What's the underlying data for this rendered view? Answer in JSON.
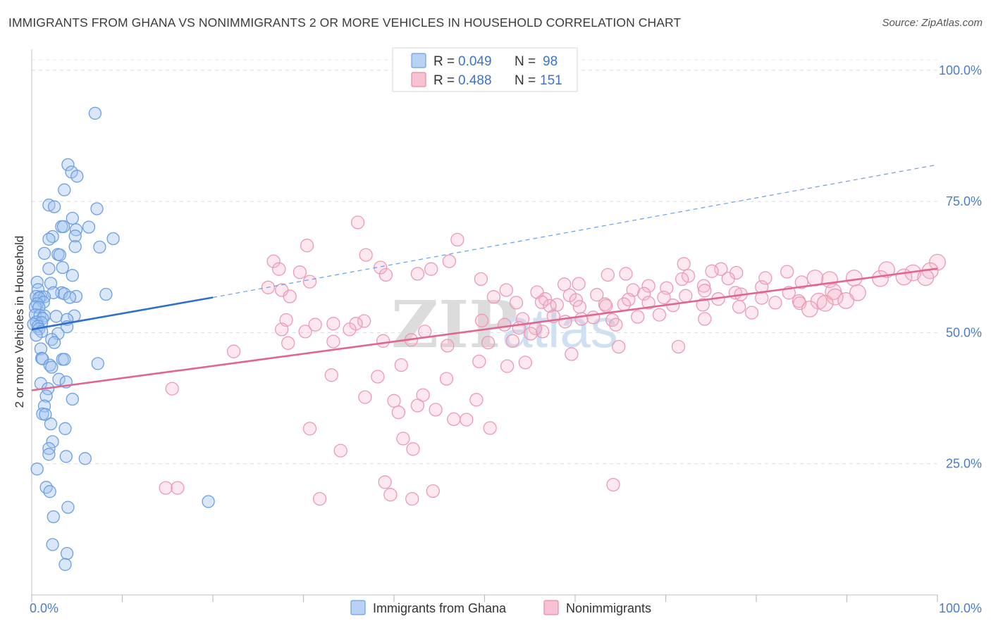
{
  "header": {
    "title": "IMMIGRANTS FROM GHANA VS NONIMMIGRANTS 2 OR MORE VEHICLES IN HOUSEHOLD CORRELATION CHART",
    "source": "Source: ZipAtlas.com"
  },
  "watermark": {
    "zip": "ZIP",
    "atlas": "atlas"
  },
  "legend": {
    "r_label": "R =",
    "n_label": "N =",
    "series": [
      {
        "name": "Immigrants from Ghana",
        "r": "0.049",
        "n": "98",
        "color": "#6fa0e0",
        "fill": "#b9d1f3"
      },
      {
        "name": "Nonimmigrants",
        "r": "0.488",
        "n": "151",
        "color": "#e88aa8",
        "fill": "#f7c3d3"
      }
    ]
  },
  "chart_data": {
    "type": "scatter",
    "title": "IMMIGRANTS FROM GHANA VS NONIMMIGRANTS 2 OR MORE VEHICLES IN HOUSEHOLD CORRELATION CHART",
    "xlabel": "",
    "ylabel": "2 or more Vehicles in Household",
    "xlim": [
      0,
      100
    ],
    "ylim": [
      0,
      104
    ],
    "x_tick_labels": [
      "0.0%",
      "100.0%"
    ],
    "y_ticks": [
      {
        "value": 25,
        "label": "25.0%"
      },
      {
        "value": 50,
        "label": "50.0%"
      },
      {
        "value": 75,
        "label": "75.0%"
      },
      {
        "value": 100,
        "label": "100.0%"
      }
    ],
    "grid": "horizontal dashed",
    "legend_position": "top-center",
    "series": [
      {
        "name": "Immigrants from Ghana",
        "color": "#3b7dd8",
        "trend": {
          "x0": 0,
          "y0": 50.6,
          "x_solid_end": 20,
          "y_solid_end": 56.7,
          "x1": 100,
          "y1": 82.0
        },
        "points": [
          [
            7.0,
            91.8
          ],
          [
            4.0,
            82.0
          ],
          [
            4.4,
            80.6
          ],
          [
            5.0,
            79.8
          ],
          [
            3.6,
            77.2
          ],
          [
            1.9,
            74.3
          ],
          [
            2.5,
            74.0
          ],
          [
            7.2,
            73.6
          ],
          [
            4.5,
            71.8
          ],
          [
            3.3,
            70.2
          ],
          [
            3.5,
            70.2
          ],
          [
            6.3,
            70.1
          ],
          [
            4.9,
            69.6
          ],
          [
            4.8,
            68.4
          ],
          [
            2.3,
            68.3
          ],
          [
            1.9,
            67.8
          ],
          [
            9.0,
            67.9
          ],
          [
            7.5,
            66.3
          ],
          [
            4.8,
            66.4
          ],
          [
            1.4,
            65.1
          ],
          [
            2.9,
            64.9
          ],
          [
            3.1,
            64.8
          ],
          [
            1.9,
            62.2
          ],
          [
            3.4,
            62.4
          ],
          [
            4.5,
            60.9
          ],
          [
            2.1,
            59.4
          ],
          [
            0.6,
            59.6
          ],
          [
            0.7,
            58.2
          ],
          [
            3.3,
            57.6
          ],
          [
            2.4,
            57.6
          ],
          [
            3.6,
            57.4
          ],
          [
            8.2,
            57.3
          ],
          [
            0.5,
            56.9
          ],
          [
            1.0,
            56.8
          ],
          [
            1.4,
            56.8
          ],
          [
            0.8,
            56.6
          ],
          [
            4.9,
            56.9
          ],
          [
            4.2,
            56.7
          ],
          [
            1.3,
            55.8
          ],
          [
            0.6,
            55.5
          ],
          [
            0.4,
            54.9
          ],
          [
            0.8,
            54.8
          ],
          [
            0.4,
            53.4
          ],
          [
            0.9,
            53.3
          ],
          [
            1.4,
            53.2
          ],
          [
            2.7,
            53.1
          ],
          [
            1.2,
            52.7
          ],
          [
            4.7,
            53.2
          ],
          [
            3.9,
            52.5
          ],
          [
            0.5,
            52.0
          ],
          [
            1.1,
            51.9
          ],
          [
            0.2,
            51.6
          ],
          [
            0.7,
            51.2
          ],
          [
            3.9,
            51.1
          ],
          [
            0.8,
            50.7
          ],
          [
            1.1,
            50.2
          ],
          [
            0.5,
            49.5
          ],
          [
            2.9,
            49.8
          ],
          [
            2.2,
            48.7
          ],
          [
            2.5,
            48.1
          ],
          [
            1.0,
            46.9
          ],
          [
            1.1,
            45.1
          ],
          [
            1.2,
            45.0
          ],
          [
            3.4,
            44.9
          ],
          [
            3.6,
            44.9
          ],
          [
            7.3,
            44.1
          ],
          [
            2.0,
            43.8
          ],
          [
            2.2,
            43.4
          ],
          [
            3.0,
            41.1
          ],
          [
            3.8,
            40.6
          ],
          [
            1.0,
            40.3
          ],
          [
            1.8,
            39.3
          ],
          [
            1.6,
            37.9
          ],
          [
            4.5,
            37.3
          ],
          [
            1.4,
            36.0
          ],
          [
            1.2,
            34.5
          ],
          [
            1.5,
            34.4
          ],
          [
            2.1,
            32.6
          ],
          [
            3.7,
            31.7
          ],
          [
            2.3,
            29.2
          ],
          [
            1.9,
            27.9
          ],
          [
            1.9,
            26.8
          ],
          [
            3.8,
            26.4
          ],
          [
            5.9,
            26.0
          ],
          [
            0.6,
            24.0
          ],
          [
            1.6,
            20.5
          ],
          [
            2.0,
            19.7
          ],
          [
            19.5,
            17.8
          ],
          [
            4.0,
            16.7
          ],
          [
            2.4,
            14.9
          ],
          [
            2.3,
            9.6
          ],
          [
            3.9,
            7.9
          ],
          [
            3.7,
            5.8
          ]
        ]
      },
      {
        "name": "Nonimmigrants",
        "color": "#e06690",
        "trend": {
          "x0": 0,
          "y0": 39.0,
          "x1": 100,
          "y1": 62.2
        },
        "points": [
          [
            36.0,
            71.0
          ],
          [
            47.0,
            67.7
          ],
          [
            30.4,
            66.6
          ],
          [
            36.9,
            64.8
          ],
          [
            26.7,
            63.6
          ],
          [
            46.1,
            63.6
          ],
          [
            72.0,
            63.1
          ],
          [
            100.0,
            63.4
          ],
          [
            38.5,
            62.4
          ],
          [
            27.3,
            62.1
          ],
          [
            44.1,
            62.1
          ],
          [
            76.1,
            62.1
          ],
          [
            75.1,
            61.7
          ],
          [
            99.2,
            61.8
          ],
          [
            97.3,
            61.4
          ],
          [
            77.8,
            61.4
          ],
          [
            83.4,
            61.6
          ],
          [
            94.4,
            62.0
          ],
          [
            42.6,
            61.2
          ],
          [
            29.6,
            61.5
          ],
          [
            39.1,
            61.0
          ],
          [
            63.6,
            61.0
          ],
          [
            65.6,
            61.2
          ],
          [
            72.5,
            60.8
          ],
          [
            71.8,
            60.2
          ],
          [
            49.6,
            60.2
          ],
          [
            76.9,
            60.3
          ],
          [
            81.0,
            60.4
          ],
          [
            86.5,
            60.4
          ],
          [
            90.8,
            60.4
          ],
          [
            93.7,
            60.3
          ],
          [
            96.3,
            60.6
          ],
          [
            98.7,
            60.5
          ],
          [
            88.1,
            60.1
          ],
          [
            30.7,
            59.7
          ],
          [
            58.8,
            59.2
          ],
          [
            60.4,
            59.3
          ],
          [
            68.1,
            58.9
          ],
          [
            74.2,
            58.9
          ],
          [
            85.0,
            59.6
          ],
          [
            26.1,
            58.6
          ],
          [
            27.6,
            58.1
          ],
          [
            52.4,
            58.1
          ],
          [
            66.4,
            58.1
          ],
          [
            70.1,
            58.5
          ],
          [
            74.3,
            58.0
          ],
          [
            77.7,
            57.6
          ],
          [
            80.6,
            58.7
          ],
          [
            83.6,
            57.6
          ],
          [
            88.5,
            57.8
          ],
          [
            91.2,
            57.6
          ],
          [
            55.8,
            57.7
          ],
          [
            59.4,
            57.1
          ],
          [
            62.4,
            57.2
          ],
          [
            67.6,
            57.4
          ],
          [
            72.2,
            57.0
          ],
          [
            78.3,
            57.3
          ],
          [
            28.5,
            56.9
          ],
          [
            51.0,
            56.8
          ],
          [
            56.7,
            56.4
          ],
          [
            60.1,
            56.2
          ],
          [
            65.9,
            56.3
          ],
          [
            69.8,
            56.7
          ],
          [
            75.8,
            56.4
          ],
          [
            80.6,
            56.6
          ],
          [
            84.7,
            56.0
          ],
          [
            86.9,
            56.0
          ],
          [
            88.7,
            56.8
          ],
          [
            56.3,
            55.8
          ],
          [
            58.0,
            55.3
          ],
          [
            63.3,
            55.4
          ],
          [
            68.1,
            55.7
          ],
          [
            53.5,
            55.7
          ],
          [
            57.2,
            55.1
          ],
          [
            60.5,
            54.9
          ],
          [
            63.4,
            55.1
          ],
          [
            65.4,
            55.4
          ],
          [
            70.8,
            55.2
          ],
          [
            74.1,
            55.3
          ],
          [
            78.1,
            54.9
          ],
          [
            82.1,
            55.7
          ],
          [
            84.8,
            55.6
          ],
          [
            87.6,
            55.6
          ],
          [
            89.9,
            56.1
          ],
          [
            28.1,
            52.4
          ],
          [
            36.7,
            52.2
          ],
          [
            31.3,
            51.5
          ],
          [
            33.3,
            51.7
          ],
          [
            35.8,
            51.7
          ],
          [
            49.7,
            52.3
          ],
          [
            57.6,
            53.1
          ],
          [
            62.0,
            52.9
          ],
          [
            64.1,
            52.4
          ],
          [
            69.3,
            53.4
          ],
          [
            74.3,
            52.6
          ],
          [
            79.5,
            53.8
          ],
          [
            85.9,
            54.5
          ],
          [
            66.9,
            53.0
          ],
          [
            60.7,
            52.6
          ],
          [
            54.2,
            52.6
          ],
          [
            52.2,
            51.5
          ],
          [
            53.8,
            50.9
          ],
          [
            56.4,
            50.2
          ],
          [
            58.9,
            52.1
          ],
          [
            64.5,
            51.5
          ],
          [
            55.6,
            50.8
          ],
          [
            27.6,
            50.6
          ],
          [
            30.2,
            50.2
          ],
          [
            35.1,
            50.6
          ],
          [
            38.8,
            48.4
          ],
          [
            41.9,
            48.6
          ],
          [
            43.4,
            50.2
          ],
          [
            33.3,
            48.3
          ],
          [
            50.4,
            48.1
          ],
          [
            53.1,
            48.4
          ],
          [
            55.1,
            49.8
          ],
          [
            64.8,
            47.3
          ],
          [
            59.6,
            45.9
          ],
          [
            71.4,
            47.3
          ],
          [
            45.9,
            47.5
          ],
          [
            28.3,
            48.0
          ],
          [
            22.3,
            46.4
          ],
          [
            54.5,
            44.3
          ],
          [
            49.4,
            44.5
          ],
          [
            52.5,
            43.6
          ],
          [
            40.8,
            43.8
          ],
          [
            33.1,
            41.9
          ],
          [
            38.2,
            41.6
          ],
          [
            45.8,
            41.2
          ],
          [
            15.5,
            39.3
          ],
          [
            43.2,
            38.1
          ],
          [
            36.8,
            37.7
          ],
          [
            49.1,
            37.2
          ],
          [
            40.0,
            37.0
          ],
          [
            42.6,
            36.1
          ],
          [
            44.6,
            35.3
          ],
          [
            40.5,
            34.8
          ],
          [
            46.6,
            33.5
          ],
          [
            48.0,
            33.4
          ],
          [
            30.7,
            31.7
          ],
          [
            50.6,
            31.8
          ],
          [
            41.0,
            29.8
          ],
          [
            42.1,
            27.8
          ],
          [
            34.1,
            27.5
          ],
          [
            39.0,
            21.5
          ],
          [
            39.6,
            19.1
          ],
          [
            44.3,
            19.8
          ],
          [
            42.0,
            18.3
          ],
          [
            31.8,
            18.3
          ],
          [
            64.2,
            21.0
          ],
          [
            16.1,
            20.4
          ],
          [
            14.8,
            20.4
          ]
        ]
      }
    ]
  }
}
